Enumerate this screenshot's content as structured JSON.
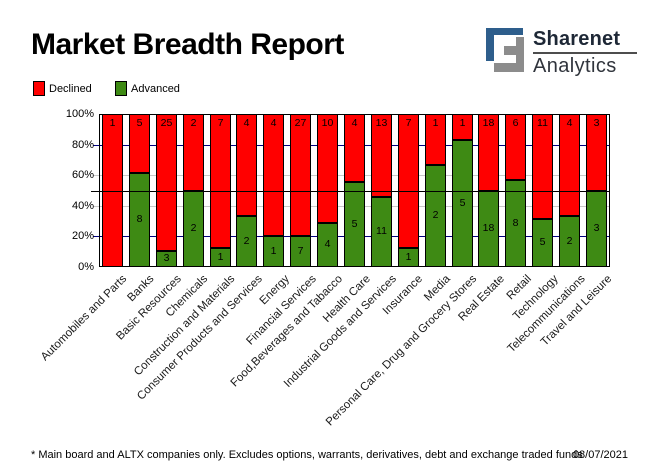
{
  "header": {
    "title": "Market Breadth Report",
    "logo": {
      "brand": "Sharenet",
      "sub": "Analytics",
      "blue": "#2e5e8c",
      "gray": "#8c8c8c"
    }
  },
  "legend": [
    {
      "label": "Declined",
      "color": "#ff0000"
    },
    {
      "label": "Advanced",
      "color": "#3e8a14"
    }
  ],
  "chart_data": {
    "type": "bar",
    "stacked": true,
    "percent_normalized": true,
    "title": "Market Breadth Report",
    "categories": [
      "Automobiles and Parts",
      "Banks",
      "Basic Resources",
      "Chemicals",
      "Construction and Materials",
      "Consumer Products and Services",
      "Energy",
      "Financial Services",
      "Food,Beverages and Tabacco",
      "Health Care",
      "Industrial Goods and Services",
      "Insurance",
      "Media",
      "Personal Care, Drug and Grocery Stores",
      "Real Estate",
      "Retail",
      "Technology",
      "Telecommunications",
      "Travel and Leisure"
    ],
    "series": [
      {
        "name": "Declined",
        "color": "#ff0000",
        "values": [
          1,
          5,
          25,
          2,
          7,
          4,
          4,
          27,
          10,
          4,
          13,
          7,
          1,
          1,
          18,
          6,
          11,
          4,
          3
        ]
      },
      {
        "name": "Advanced",
        "color": "#3e8a14",
        "values": [
          0,
          8,
          3,
          2,
          1,
          2,
          1,
          7,
          4,
          5,
          11,
          1,
          2,
          5,
          18,
          8,
          5,
          2,
          3
        ]
      }
    ],
    "ylim": [
      0,
      100
    ],
    "yticks": [
      "100%",
      "80%",
      "60%",
      "40%",
      "20%",
      "0%"
    ],
    "gridlines": [
      {
        "value": 80,
        "color": "#000080"
      },
      {
        "value": 60,
        "color": "#c8c8c8"
      },
      {
        "value": 40,
        "color": "#c8c8c8"
      },
      {
        "value": 20,
        "color": "#000080"
      }
    ],
    "midline": {
      "value": 50,
      "color": "#000000"
    },
    "legend_position": "top-left",
    "bar_value_labels": "segment counts drawn inside bars",
    "x_label_rotation": 45
  },
  "footer": {
    "note": "* Main board and ALTX companies only. Excludes options, warrants, derivatives, debt and exchange traded funds",
    "date": "08/07/2021"
  }
}
